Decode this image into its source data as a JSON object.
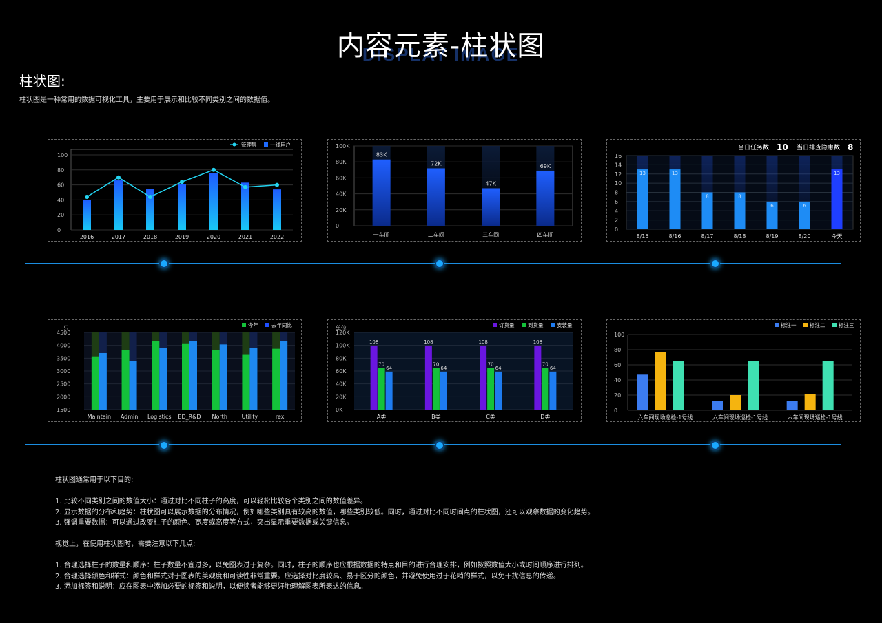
{
  "page": {
    "title": "内容元素-柱状图",
    "subtitle": "DISPLAY IMAGE",
    "section_title": "柱状图:",
    "section_desc": "柱状图是一种常用的数据可视化工具，主要用于展示和比较不同类别之间的数据值。"
  },
  "colors": {
    "accent": "#1aa8ff",
    "panel_border": "#666666",
    "grid": "#2a2a2a"
  },
  "chart_data": [
    {
      "type": "bar",
      "categories": [
        "2016",
        "2017",
        "2018",
        "2019",
        "2020",
        "2021",
        "2022"
      ],
      "series": [
        {
          "name": "一线用户",
          "kind": "bar",
          "values": [
            40,
            66,
            55,
            61,
            76,
            63,
            54
          ]
        },
        {
          "name": "管理层",
          "kind": "line",
          "values": [
            44,
            70,
            44,
            64,
            80,
            57,
            60
          ]
        }
      ],
      "yticks": [
        "0",
        "20",
        "40",
        "60",
        "80",
        "100"
      ],
      "ylim": [
        0,
        100
      ],
      "legend": "top-right"
    },
    {
      "type": "bar",
      "categories": [
        "一车间",
        "二车间",
        "三车间",
        "四车间"
      ],
      "values": [
        83,
        72,
        47,
        69
      ],
      "data_labels": [
        "83K",
        "72K",
        "47K",
        "69K"
      ],
      "yticks": [
        "0",
        "20K",
        "40K",
        "60K",
        "80K",
        "100K"
      ],
      "ylim": [
        0,
        100
      ]
    },
    {
      "type": "bar",
      "header": [
        {
          "label": "当日任务数:",
          "value": "10"
        },
        {
          "label": "当日排查隐患数:",
          "value": "8"
        }
      ],
      "categories": [
        "8/15",
        "8/16",
        "8/17",
        "8/18",
        "8/19",
        "8/20",
        "今天"
      ],
      "values": [
        13,
        13,
        8,
        8,
        6,
        6,
        13
      ],
      "yticks": [
        "0",
        "2",
        "4",
        "6",
        "8",
        "10",
        "12",
        "14",
        "16"
      ],
      "ylim": [
        0,
        16
      ]
    },
    {
      "type": "bar",
      "unit": "只",
      "categories": [
        "Maintain",
        "Admin",
        "Logistics",
        "ED_R&D",
        "North",
        "Utility",
        "rex"
      ],
      "series": [
        {
          "name": "今年",
          "values": [
            3700,
            4000,
            4400,
            4300,
            4000,
            3800,
            4050
          ]
        },
        {
          "name": "去年同比",
          "values": [
            3850,
            3500,
            4100,
            4400,
            4250,
            4100,
            4400
          ]
        }
      ],
      "yticks": [
        "1500",
        "2000",
        "2500",
        "3000",
        "3500",
        "4000",
        "4500"
      ],
      "ylim": [
        1250,
        4800
      ],
      "legend": "top-right"
    },
    {
      "type": "bar",
      "unit": "单位",
      "categories": [
        "A类",
        "B类",
        "C类",
        "D类"
      ],
      "series": [
        {
          "name": "订货量",
          "values": [
            108,
            108,
            108,
            108
          ]
        },
        {
          "name": "到货量",
          "values": [
            70,
            70,
            70,
            70
          ]
        },
        {
          "name": "安装量",
          "values": [
            64,
            64,
            64,
            64
          ]
        }
      ],
      "yticks": [
        "0K",
        "20K",
        "40K",
        "60K",
        "80K",
        "100K",
        "120K"
      ],
      "ylim": [
        0,
        130
      ],
      "legend": "top-right"
    },
    {
      "type": "bar",
      "categories": [
        "六车间现场巡检-1号线",
        "六车间现场巡检-1号线",
        "六车间现场巡检-1号线"
      ],
      "series": [
        {
          "name": "标注一",
          "values": [
            47,
            12,
            12
          ]
        },
        {
          "name": "标注二",
          "values": [
            77,
            20,
            21
          ]
        },
        {
          "name": "标注三",
          "values": [
            65,
            65,
            65
          ]
        }
      ],
      "yticks": [
        "0",
        "20",
        "40",
        "60",
        "80",
        "100"
      ],
      "ylim": [
        0,
        100
      ],
      "legend": "top-right"
    }
  ],
  "notes": {
    "intro": "柱状图通常用于以下目的:",
    "purposes": [
      "1. 比较不同类别之间的数值大小：通过对比不同柱子的高度，可以轻松比较各个类别之间的数值差异。",
      "2. 显示数据的分布和趋势：柱状图可以展示数据的分布情况，例如哪些类别具有较高的数值，哪些类别较低。同时，通过对比不同时间点的柱状图，还可以观察数据的变化趋势。",
      "3. 强调重要数据：可以通过改变柱子的颜色、宽度或高度等方式，突出显示重要数据或关键信息。"
    ],
    "intro2": "视觉上，在使用柱状图时，需要注意以下几点:",
    "tips": [
      "1. 合理选择柱子的数量和顺序：柱子数量不宜过多，以免图表过于复杂。同时，柱子的顺序也应根据数据的特点和目的进行合理安排，例如按照数值大小或时间顺序进行排列。",
      "2. 合理选择颜色和样式：颜色和样式对于图表的美观度和可读性非常重要。应选择对比度较高、易于区分的颜色，并避免使用过于花哨的样式，以免干扰信息的传递。",
      "3. 添加标签和说明：应在图表中添加必要的标签和说明，以便读者能够更好地理解图表所表达的信息。"
    ]
  }
}
